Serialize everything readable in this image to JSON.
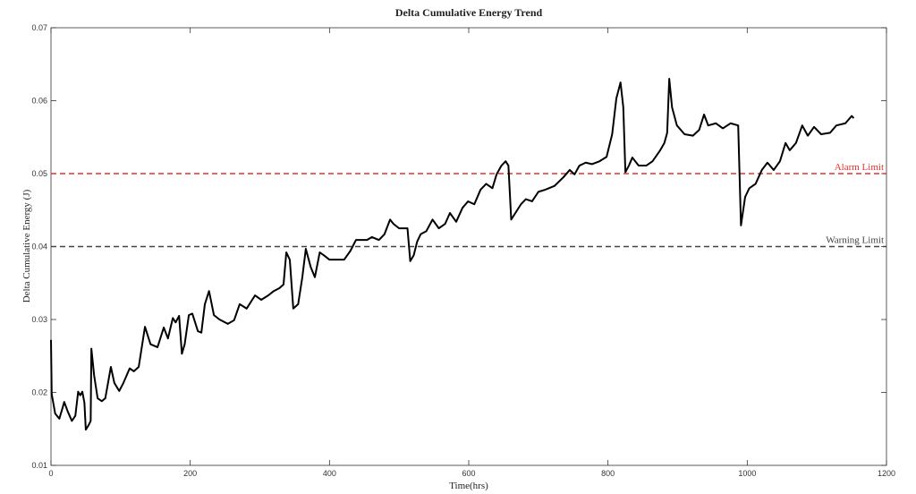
{
  "chart_data": {
    "type": "line",
    "title": "Delta Cumulative Energy Trend",
    "x_label": "Time(hrs)",
    "y_label": "Delta Cumulative Energy (J)",
    "xlim": [
      0,
      1200
    ],
    "xticks": [
      0,
      200,
      400,
      600,
      800,
      1000,
      1200
    ],
    "ylim": [
      0.01,
      0.07
    ],
    "yticks": [
      0.01,
      0.02,
      0.03,
      0.04,
      0.05,
      0.06,
      0.07
    ],
    "grid": false,
    "reference_lines": [
      {
        "value": 0.05,
        "label": "Alarm Limit",
        "color": "#e8302c"
      },
      {
        "value": 0.04,
        "label": "Warning Limit",
        "color": "#444444"
      }
    ],
    "series": [
      {
        "name": "Delta Cumulative Energy",
        "color": "#000000",
        "x": [
          0,
          1,
          6,
          12,
          17,
          19,
          24,
          30,
          35,
          39,
          42,
          45,
          48,
          50,
          54,
          57,
          58,
          62,
          67,
          73,
          78,
          86,
          91,
          98,
          104,
          113,
          119,
          126,
          135,
          143,
          153,
          162,
          168,
          175,
          179,
          184,
          188,
          192,
          198,
          203,
          211,
          216,
          221,
          227,
          234,
          242,
          254,
          263,
          271,
          281,
          293,
          302,
          312,
          320,
          328,
          334,
          338,
          343,
          348,
          355,
          361,
          366,
          373,
          379,
          386,
          392,
          400,
          412,
          421,
          430,
          438,
          447,
          454,
          461,
          471,
          479,
          487,
          492,
          500,
          512,
          516,
          521,
          526,
          531,
          539,
          548,
          557,
          566,
          573,
          582,
          591,
          599,
          608,
          617,
          625,
          634,
          640,
          647,
          653,
          657,
          661,
          667,
          675,
          682,
          691,
          700,
          710,
          723,
          736,
          745,
          752,
          759,
          768,
          777,
          788,
          798,
          806,
          812,
          818,
          822,
          825,
          830,
          835,
          844,
          855,
          864,
          875,
          881,
          885,
          888,
          892,
          899,
          910,
          922,
          931,
          938,
          944,
          955,
          965,
          976,
          987,
          991,
          997,
          1003,
          1012,
          1021,
          1029,
          1038,
          1047,
          1055,
          1061,
          1070,
          1079,
          1087,
          1096,
          1106,
          1119,
          1128,
          1141,
          1150,
          1153
        ],
        "values": [
          0.0272,
          0.0198,
          0.0171,
          0.0164,
          0.018,
          0.0187,
          0.0174,
          0.0161,
          0.0168,
          0.0201,
          0.0196,
          0.0201,
          0.0186,
          0.0149,
          0.0155,
          0.0161,
          0.026,
          0.0223,
          0.0192,
          0.0188,
          0.0192,
          0.0235,
          0.0213,
          0.0202,
          0.0213,
          0.0233,
          0.0229,
          0.0235,
          0.029,
          0.0266,
          0.0262,
          0.0289,
          0.0274,
          0.0302,
          0.0296,
          0.0305,
          0.0253,
          0.0266,
          0.0306,
          0.0308,
          0.0284,
          0.0282,
          0.0321,
          0.0339,
          0.0306,
          0.03,
          0.0294,
          0.0299,
          0.0321,
          0.0315,
          0.0333,
          0.0327,
          0.0333,
          0.0339,
          0.0343,
          0.0348,
          0.0392,
          0.0382,
          0.0315,
          0.0321,
          0.0358,
          0.0397,
          0.0372,
          0.0358,
          0.0392,
          0.0388,
          0.0382,
          0.0382,
          0.0382,
          0.0394,
          0.0409,
          0.0409,
          0.0409,
          0.0413,
          0.0409,
          0.0417,
          0.0437,
          0.0431,
          0.0425,
          0.0425,
          0.038,
          0.0388,
          0.0407,
          0.0417,
          0.0421,
          0.0437,
          0.0425,
          0.0431,
          0.0446,
          0.0434,
          0.0453,
          0.0462,
          0.0458,
          0.0478,
          0.0486,
          0.048,
          0.0499,
          0.0511,
          0.0517,
          0.0511,
          0.0437,
          0.0446,
          0.0458,
          0.0465,
          0.0462,
          0.0475,
          0.0478,
          0.0483,
          0.0495,
          0.0505,
          0.0499,
          0.0511,
          0.0515,
          0.0513,
          0.0517,
          0.0523,
          0.0554,
          0.0603,
          0.0625,
          0.0591,
          0.0502,
          0.0511,
          0.0522,
          0.0511,
          0.0511,
          0.0517,
          0.0532,
          0.0542,
          0.0556,
          0.063,
          0.0591,
          0.0566,
          0.0554,
          0.0552,
          0.056,
          0.0581,
          0.0566,
          0.0569,
          0.0562,
          0.0569,
          0.0566,
          0.0429,
          0.0468,
          0.048,
          0.0486,
          0.0505,
          0.0515,
          0.0505,
          0.0517,
          0.0542,
          0.0532,
          0.0542,
          0.0566,
          0.0552,
          0.0564,
          0.0554,
          0.0556,
          0.0566,
          0.0569,
          0.0579,
          0.0576
        ]
      }
    ]
  }
}
